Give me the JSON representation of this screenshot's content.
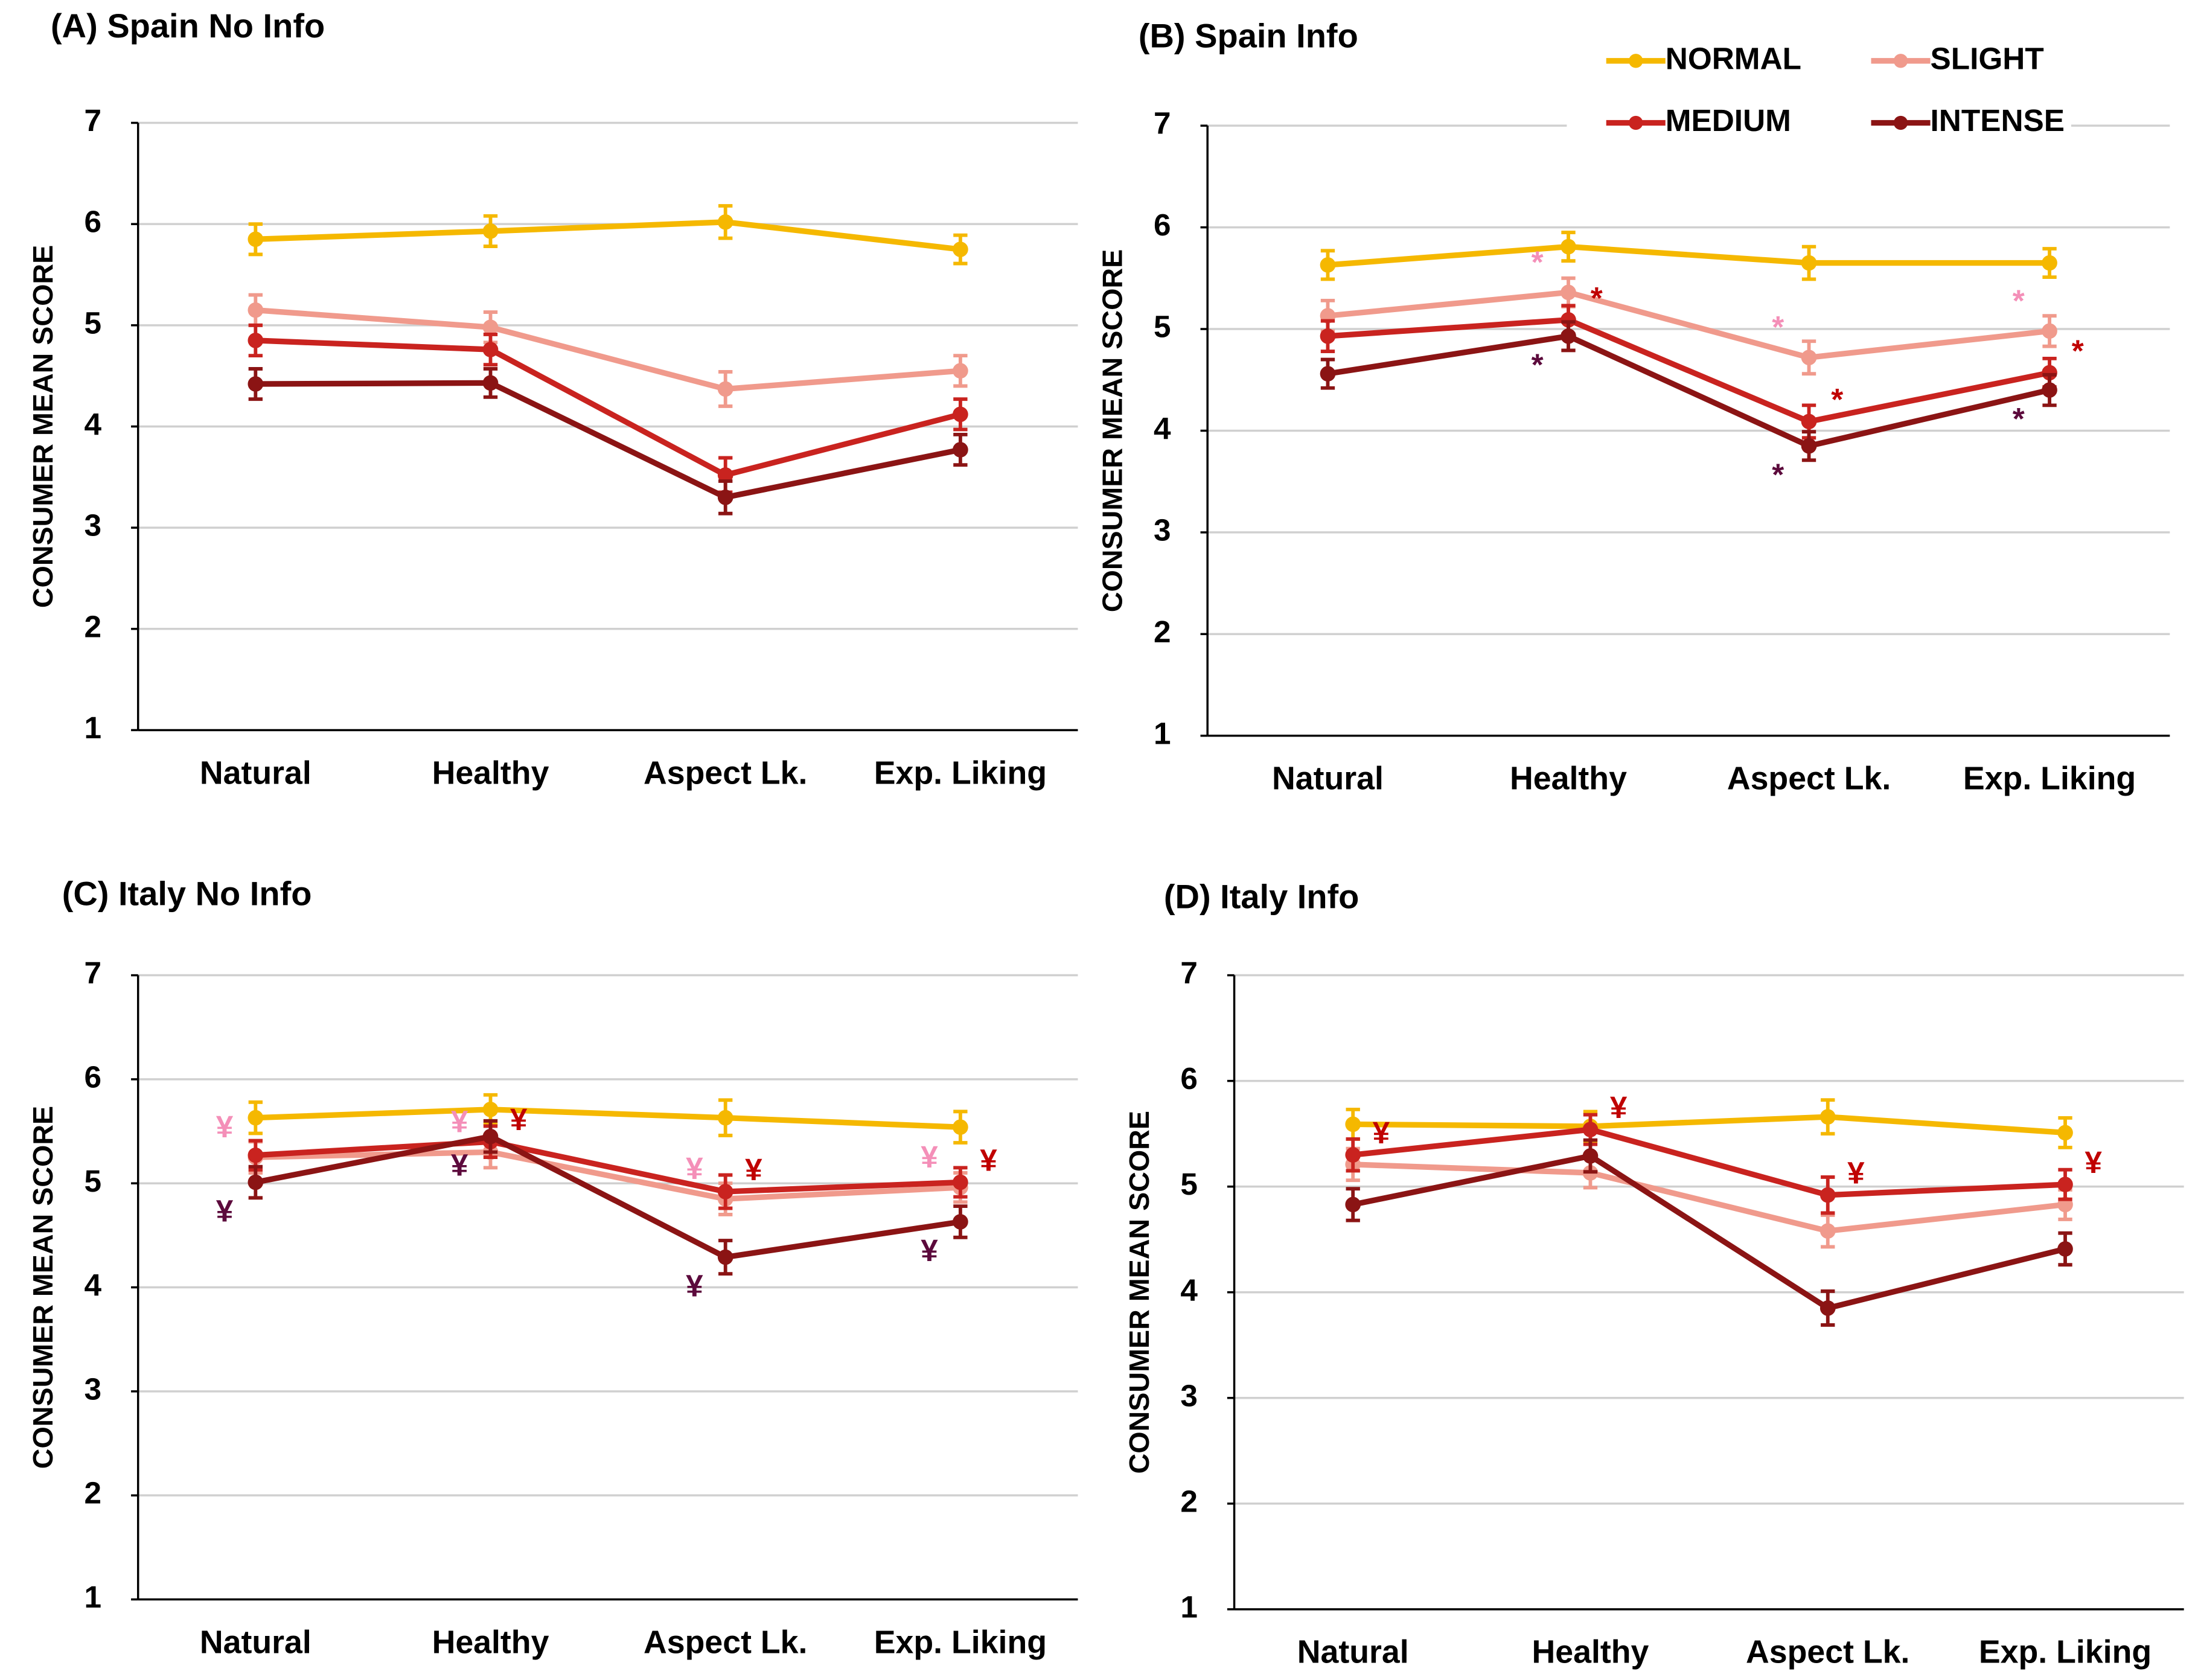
{
  "chart_data": [
    {
      "type": "line",
      "title": "(A) Spain No Info",
      "ylabel": "CONSUMER MEAN SCORE",
      "categories": [
        "Natural",
        "Healthy",
        "Aspect Lk.",
        "Exp. Liking"
      ],
      "ylim": [
        1,
        7
      ],
      "yticks": [
        1,
        2,
        3,
        4,
        5,
        6,
        7
      ],
      "grid": true,
      "series": [
        {
          "color": "#f5b800",
          "values": [
            5.85,
            5.93,
            6.02,
            5.75
          ],
          "errors": [
            0.15,
            0.15,
            0.16,
            0.14
          ]
        },
        {
          "color": "#f09a8c",
          "values": [
            5.15,
            4.98,
            4.37,
            4.55
          ],
          "errors": [
            0.15,
            0.15,
            0.17,
            0.15
          ]
        },
        {
          "color": "#c9231f",
          "values": [
            4.85,
            4.76,
            3.52,
            4.12
          ],
          "errors": [
            0.15,
            0.15,
            0.17,
            0.15
          ]
        },
        {
          "color": "#8b1414",
          "values": [
            4.42,
            4.43,
            3.3,
            3.77
          ],
          "errors": [
            0.15,
            0.14,
            0.16,
            0.15
          ]
        }
      ]
    },
    {
      "type": "line",
      "title": "(B) Spain Info",
      "ylabel": "CONSUMER MEAN SCORE",
      "categories": [
        "Natural",
        "Healthy",
        "Aspect Lk.",
        "Exp. Liking"
      ],
      "ylim": [
        1,
        7
      ],
      "yticks": [
        1,
        2,
        3,
        4,
        5,
        6,
        7
      ],
      "grid": true,
      "legend": true,
      "series": [
        {
          "name": "NORMAL",
          "color": "#f5b800",
          "values": [
            5.63,
            5.81,
            5.65,
            5.65
          ],
          "errors": [
            0.14,
            0.14,
            0.16,
            0.14
          ]
        },
        {
          "name": "SLIGHT",
          "color": "#f09a8c",
          "values": [
            5.13,
            5.36,
            4.72,
            4.98
          ],
          "errors": [
            0.15,
            0.14,
            0.16,
            0.15
          ],
          "markers": [
            null,
            "*",
            "*",
            "*"
          ],
          "marker_color": "#f48fb8"
        },
        {
          "name": "MEDIUM",
          "color": "#c9231f",
          "values": [
            4.93,
            5.09,
            4.09,
            4.57
          ],
          "errors": [
            0.15,
            0.14,
            0.16,
            0.14
          ],
          "markers": [
            null,
            "*",
            "*",
            "*"
          ],
          "marker_color": "#c00000"
        },
        {
          "name": "INTENSE",
          "color": "#8b1414",
          "values": [
            4.56,
            4.93,
            3.85,
            4.4
          ],
          "errors": [
            0.14,
            0.14,
            0.14,
            0.15
          ],
          "markers": [
            null,
            "*",
            "*",
            "*"
          ],
          "marker_color": "#5c0a3c"
        }
      ]
    },
    {
      "type": "line",
      "title": "(C) Italy No Info",
      "ylabel": "CONSUMER MEAN SCORE",
      "categories": [
        "Natural",
        "Healthy",
        "Aspect Lk.",
        "Exp. Liking"
      ],
      "ylim": [
        1,
        7
      ],
      "yticks": [
        1,
        2,
        3,
        4,
        5,
        6,
        7
      ],
      "grid": true,
      "series": [
        {
          "color": "#f5b800",
          "values": [
            5.63,
            5.71,
            5.63,
            5.54
          ],
          "errors": [
            0.15,
            0.14,
            0.17,
            0.15
          ]
        },
        {
          "color": "#f09a8c",
          "values": [
            5.25,
            5.3,
            4.85,
            4.96
          ],
          "errors": [
            0.15,
            0.15,
            0.15,
            0.14
          ],
          "markers": [
            "¥",
            "¥",
            "¥",
            "¥"
          ],
          "marker_color": "#f48fb8"
        },
        {
          "color": "#c9231f",
          "values": [
            5.27,
            5.4,
            4.92,
            5.01
          ],
          "errors": [
            0.14,
            0.15,
            0.16,
            0.14
          ],
          "markers": [
            null,
            "¥",
            "¥",
            "¥"
          ],
          "marker_color": "#c00000"
        },
        {
          "color": "#8b1414",
          "values": [
            5.01,
            5.45,
            4.29,
            4.63
          ],
          "errors": [
            0.15,
            0.15,
            0.16,
            0.15
          ],
          "markers": [
            "¥",
            "¥",
            "¥",
            "¥"
          ],
          "marker_color": "#5c0a3c"
        }
      ]
    },
    {
      "type": "line",
      "title": "(D) Italy Info",
      "ylabel": "CONSUMER MEAN SCORE",
      "categories": [
        "Natural",
        "Healthy",
        "Aspect Lk.",
        "Exp. Liking"
      ],
      "ylim": [
        1,
        7
      ],
      "yticks": [
        1,
        2,
        3,
        4,
        5,
        6,
        7
      ],
      "grid": true,
      "series": [
        {
          "color": "#f5b800",
          "values": [
            5.59,
            5.57,
            5.66,
            5.51
          ],
          "errors": [
            0.14,
            0.14,
            0.16,
            0.14
          ]
        },
        {
          "color": "#f09a8c",
          "values": [
            5.21,
            5.13,
            4.58,
            4.83
          ],
          "errors": [
            0.15,
            0.14,
            0.15,
            0.14
          ]
        },
        {
          "color": "#c9231f",
          "values": [
            5.3,
            5.54,
            4.92,
            5.02
          ],
          "errors": [
            0.15,
            0.14,
            0.17,
            0.14
          ],
          "markers": [
            "¥",
            "¥",
            "¥",
            "¥"
          ],
          "marker_color": "#c00000"
        },
        {
          "color": "#8b1414",
          "values": [
            4.83,
            5.29,
            3.85,
            4.41
          ],
          "errors": [
            0.15,
            0.15,
            0.16,
            0.15
          ]
        }
      ]
    }
  ]
}
